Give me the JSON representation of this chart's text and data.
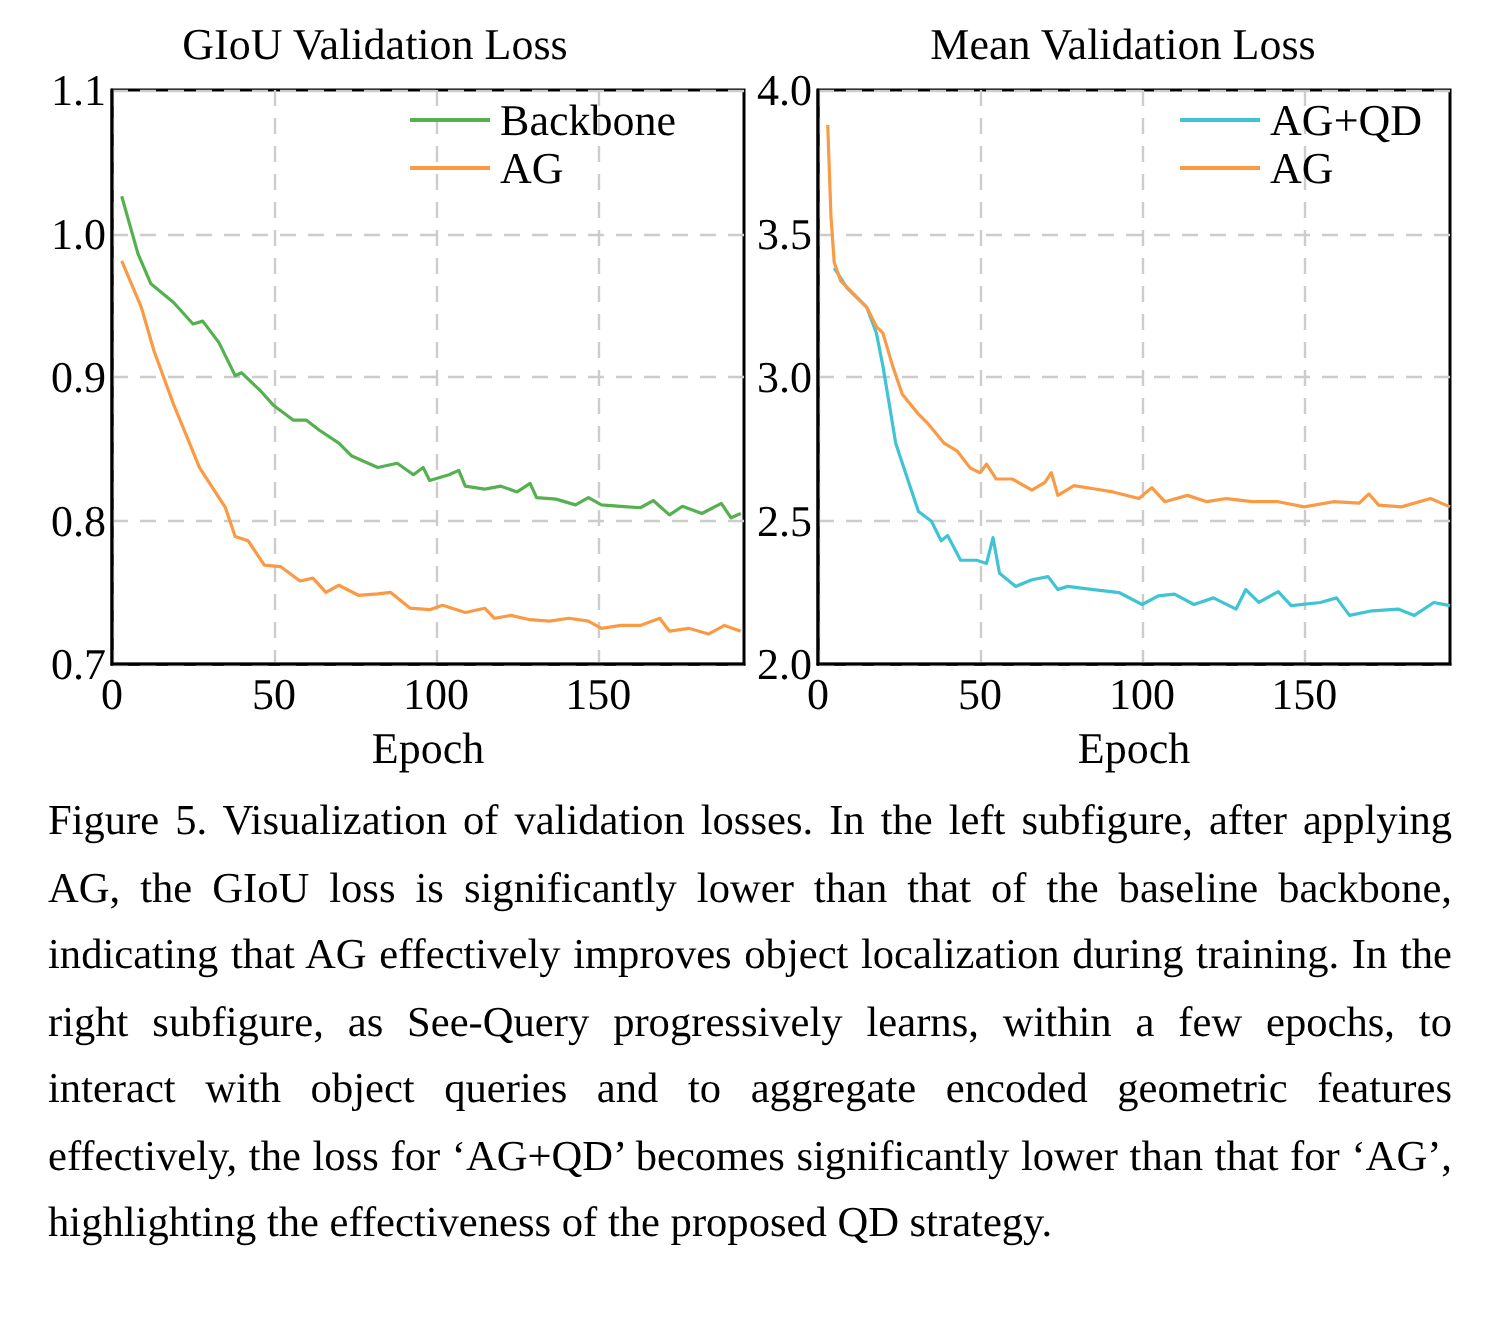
{
  "chart_data": [
    {
      "type": "line",
      "title": "GIoU Validation Loss",
      "xlabel": "Epoch",
      "xlim": [
        0,
        195
      ],
      "xticks": [
        0,
        50,
        100,
        150
      ],
      "ylim": [
        0.7,
        1.1
      ],
      "yticks": [
        0.7,
        0.8,
        0.9,
        {
          "value": 1.0,
          "label": "1.0"
        },
        1.1
      ],
      "grid": true,
      "legend": "top right",
      "series": [
        {
          "name": "Backbone",
          "color": "#55b04f",
          "x": [
            3,
            8,
            12,
            19,
            25,
            28,
            33,
            38,
            40,
            46,
            50,
            56,
            60,
            64,
            70,
            74,
            82,
            88,
            93,
            96,
            98,
            104,
            107,
            109,
            115,
            120,
            125,
            129,
            131,
            137,
            143,
            147,
            151,
            157,
            163,
            167,
            172,
            176,
            182,
            188,
            191,
            194
          ],
          "values": [
            1.026,
            0.986,
            0.965,
            0.952,
            0.937,
            0.939,
            0.924,
            0.901,
            0.903,
            0.89,
            0.88,
            0.87,
            0.87,
            0.863,
            0.854,
            0.845,
            0.837,
            0.84,
            0.832,
            0.837,
            0.828,
            0.832,
            0.835,
            0.824,
            0.822,
            0.824,
            0.82,
            0.826,
            0.816,
            0.815,
            0.811,
            0.816,
            0.811,
            0.81,
            0.809,
            0.814,
            0.804,
            0.81,
            0.805,
            0.812,
            0.802,
            0.805
          ]
        },
        {
          "name": "AG",
          "color": "#fb9a45",
          "x": [
            3,
            9,
            13,
            19,
            23,
            27,
            31,
            35,
            38,
            42,
            47,
            52,
            58,
            62,
            66,
            70,
            76,
            82,
            86,
            92,
            98,
            102,
            109,
            115,
            118,
            123,
            129,
            135,
            141,
            147,
            151,
            157,
            163,
            169,
            172,
            178,
            184,
            189,
            194
          ],
          "values": [
            0.981,
            0.949,
            0.918,
            0.881,
            0.859,
            0.837,
            0.823,
            0.809,
            0.789,
            0.786,
            0.769,
            0.768,
            0.758,
            0.76,
            0.75,
            0.755,
            0.748,
            0.749,
            0.75,
            0.739,
            0.738,
            0.741,
            0.736,
            0.739,
            0.732,
            0.734,
            0.731,
            0.73,
            0.732,
            0.73,
            0.725,
            0.727,
            0.727,
            0.732,
            0.723,
            0.725,
            0.721,
            0.727,
            0.723
          ]
        }
      ]
    },
    {
      "type": "line",
      "title": "Mean Validation Loss",
      "xlabel": "Epoch",
      "xlim": [
        0,
        195
      ],
      "xticks": [
        0,
        50,
        100,
        150
      ],
      "ylim": [
        2.0,
        4.0
      ],
      "yticks": [
        {
          "value": 2.0,
          "label": "2.0"
        },
        2.5,
        {
          "value": 3.0,
          "label": "3.0"
        },
        3.5,
        {
          "value": 4.0,
          "label": "4.0"
        }
      ],
      "grid": true,
      "legend": "top right",
      "annotations": [
        "Figure 5. Visualization of validation losses. In the left subfigure, after applying AG, the GIoU loss is significantly lower than that of the baseline backbone, indicating that AG effectively improves object localization during training. In the right subfigure, as See-Query progressively learns, within a few epochs, to interact with object queries and to aggregate encoded geometric features effectively, the loss for ‘AG+QD’ becomes significantly lower than that for ‘AG’, highlighting the effectiveness of the proposed QD strategy."
      ],
      "series": [
        {
          "name": "AG+QD",
          "color": "#40c4d4",
          "x": [
            5,
            9,
            15,
            18,
            20,
            22,
            24,
            28,
            31,
            35,
            38,
            40,
            44,
            49,
            52,
            54,
            56,
            61,
            66,
            71,
            74,
            77,
            85,
            93,
            100,
            105,
            110,
            116,
            122,
            129,
            132,
            136,
            142,
            146,
            155,
            160,
            164,
            171,
            179,
            184,
            190,
            195
          ],
          "values": [
            3.38,
            3.31,
            3.244,
            3.154,
            3.04,
            2.905,
            2.769,
            2.633,
            2.532,
            2.498,
            2.43,
            2.448,
            2.362,
            2.362,
            2.351,
            2.441,
            2.317,
            2.271,
            2.294,
            2.305,
            2.26,
            2.271,
            2.26,
            2.249,
            2.208,
            2.238,
            2.244,
            2.208,
            2.231,
            2.192,
            2.26,
            2.215,
            2.253,
            2.204,
            2.215,
            2.231,
            2.17,
            2.186,
            2.192,
            2.17,
            2.215,
            2.204
          ]
        },
        {
          "name": "AG",
          "color": "#fb9a45",
          "x": [
            3,
            4,
            5,
            7,
            11,
            15,
            18,
            20,
            23,
            26,
            31,
            34,
            39,
            43,
            47,
            50,
            52,
            55,
            60,
            66,
            70,
            72,
            74,
            79,
            85,
            91,
            99,
            103,
            107,
            114,
            120,
            126,
            134,
            142,
            150,
            159,
            167,
            170,
            173,
            180,
            189,
            195
          ],
          "values": [
            3.878,
            3.56,
            3.4,
            3.335,
            3.29,
            3.244,
            3.176,
            3.154,
            3.04,
            2.94,
            2.871,
            2.837,
            2.769,
            2.742,
            2.683,
            2.667,
            2.697,
            2.645,
            2.645,
            2.606,
            2.633,
            2.667,
            2.588,
            2.622,
            2.611,
            2.6,
            2.577,
            2.615,
            2.566,
            2.588,
            2.566,
            2.577,
            2.566,
            2.566,
            2.548,
            2.566,
            2.561,
            2.593,
            2.554,
            2.548,
            2.577,
            2.548
          ]
        }
      ]
    }
  ]
}
